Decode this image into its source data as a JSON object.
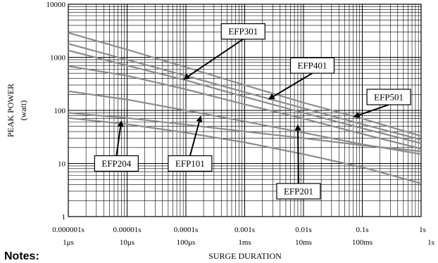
{
  "notes_label": "Notes:",
  "colors": {
    "grid": "#000000",
    "series": "#8c8c8c",
    "callout": "#000000"
  },
  "chart_data": {
    "type": "line",
    "title": "",
    "xlabel": "SURGE DURATION",
    "ylabel": "PEAK POWER",
    "ylabel_unit": "(watt)",
    "x_scale": "log",
    "y_scale": "log",
    "xlim": [
      1e-06,
      1
    ],
    "ylim": [
      1,
      10000
    ],
    "grid": true,
    "x_ticks": [
      {
        "value": 1e-06,
        "label": "0.000001s",
        "sublabel": "1μs"
      },
      {
        "value": 1e-05,
        "label": "0.00001s",
        "sublabel": "10μs"
      },
      {
        "value": 0.0001,
        "label": "0.0001s",
        "sublabel": "100μs"
      },
      {
        "value": 0.001,
        "label": "0.001s",
        "sublabel": "1ms"
      },
      {
        "value": 0.01,
        "label": "0.01s",
        "sublabel": "10ms"
      },
      {
        "value": 0.1,
        "label": "0.1s",
        "sublabel": "100ms"
      },
      {
        "value": 1,
        "label": "1s",
        "sublabel": "1s"
      }
    ],
    "y_ticks": [
      {
        "value": 1,
        "label": "1"
      },
      {
        "value": 10,
        "label": "10"
      },
      {
        "value": 100,
        "label": "100"
      },
      {
        "value": 1000,
        "label": "1000"
      },
      {
        "value": 10000,
        "label": "10000"
      }
    ],
    "series": [
      {
        "x": [
          1e-06,
          1e-05,
          0.0001,
          0.001,
          0.01,
          0.1,
          1
        ],
        "values": [
          2900,
          1400,
          650,
          300,
          140,
          70,
          33
        ]
      },
      {
        "x": [
          1e-06,
          1e-05,
          0.0001,
          0.001,
          0.01,
          0.1,
          1
        ],
        "values": [
          1800,
          900,
          450,
          220,
          110,
          55,
          28
        ]
      },
      {
        "x": [
          1e-06,
          1e-05,
          0.0001,
          0.001,
          0.01,
          0.1,
          1
        ],
        "values": [
          1350,
          700,
          370,
          180,
          90,
          46,
          24
        ]
      },
      {
        "x": [
          1e-06,
          1e-05,
          0.0001,
          0.001,
          0.01,
          0.1,
          1
        ],
        "values": [
          680,
          450,
          250,
          130,
          70,
          36,
          19
        ]
      },
      {
        "x": [
          1e-06,
          1e-05,
          0.0001,
          0.001,
          0.01,
          0.1,
          1
        ],
        "values": [
          230,
          160,
          100,
          62,
          38,
          23,
          15
        ]
      },
      {
        "x": [
          1e-06,
          1e-05,
          0.0001,
          0.001,
          0.01,
          0.1,
          1
        ],
        "values": [
          90,
          72,
          54,
          40,
          30,
          22,
          17
        ]
      },
      {
        "x": [
          1e-06,
          1e-05,
          0.0001,
          0.001,
          0.01,
          0.1,
          1
        ],
        "values": [
          72,
          55,
          38,
          25,
          15,
          8.5,
          4.2
        ]
      }
    ],
    "annotations": [
      {
        "label": "EFP301",
        "box_at": [
          0.0004,
          4300
        ],
        "arrow_to": [
          9e-05,
          380
        ]
      },
      {
        "label": "EFP401",
        "box_at": [
          0.006,
          980
        ],
        "arrow_to": [
          0.0025,
          160
        ]
      },
      {
        "label": "EFP501",
        "box_at": [
          0.12,
          250
        ],
        "arrow_to": [
          0.07,
          75
        ]
      },
      {
        "label": "EFP204",
        "box_at": [
          2.8e-06,
          14
        ],
        "arrow_to": [
          8e-06,
          65
        ]
      },
      {
        "label": "EFP101",
        "box_at": [
          5e-05,
          14
        ],
        "arrow_to": [
          0.00018,
          80
        ]
      },
      {
        "label": "EFP201",
        "box_at": [
          0.0035,
          4.2
        ],
        "arrow_to": [
          0.008,
          55
        ]
      }
    ]
  }
}
